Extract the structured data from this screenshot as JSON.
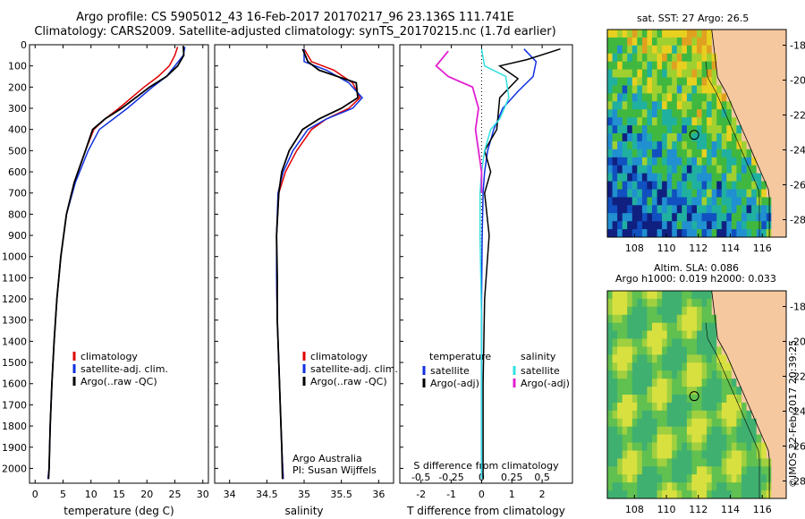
{
  "header": {
    "line1": "Argo profile: CS 5905012_43 16-Feb-2017 20170217_96 23.136S 111.741E",
    "line2": "Climatology: CARS2009. Satellite-adjusted climatology: synTS_20170215.nc (1.7d earlier)"
  },
  "colors": {
    "climatology": "#e00000",
    "satellite": "#1030e0",
    "argo": "#000000",
    "s_satellite": "#30e0e0",
    "s_argo": "#e020d0",
    "land": "#f5c8a0"
  },
  "chart_data": [
    {
      "type": "line",
      "xlabel": "temperature (deg C)",
      "xlim": [
        -1,
        31
      ],
      "xticks": [
        "0",
        "5",
        "10",
        "15",
        "20",
        "25",
        "30"
      ],
      "ylim": [
        0,
        2070
      ],
      "yticks": [
        "0",
        "100",
        "200",
        "300",
        "400",
        "500",
        "600",
        "700",
        "800",
        "900",
        "1000",
        "1100",
        "1200",
        "1300",
        "1400",
        "1500",
        "1600",
        "1700",
        "1800",
        "1900",
        "2000"
      ],
      "legend": [
        "climatology",
        "satellite-adj. clim.",
        "Argo(..raw -QC)"
      ],
      "series": [
        {
          "name": "climatology",
          "x": [
            25.5,
            25.0,
            24.0,
            22.0,
            19.5,
            15.0,
            12.5,
            10.5,
            9.0,
            7.0,
            5.6,
            4.6,
            3.9,
            3.4,
            3.0,
            2.7,
            2.5,
            2.3
          ],
          "y": [
            10,
            50,
            100,
            150,
            200,
            300,
            350,
            400,
            500,
            650,
            800,
            1000,
            1200,
            1400,
            1600,
            1800,
            2000,
            2050
          ]
        },
        {
          "name": "satellite-adj. clim.",
          "x": [
            26.8,
            26.5,
            25.0,
            23.5,
            21.0,
            16.5,
            14.0,
            11.5,
            9.5,
            7.2,
            5.6,
            4.6,
            3.9,
            3.4,
            3.0,
            2.7,
            2.5,
            2.3
          ],
          "y": [
            10,
            50,
            100,
            150,
            200,
            300,
            350,
            400,
            500,
            650,
            800,
            1000,
            1200,
            1400,
            1600,
            1800,
            2000,
            2050
          ]
        },
        {
          "name": "Argo(..raw -QC)",
          "x": [
            26.5,
            26.6,
            25.5,
            23.5,
            20.5,
            15.5,
            12.5,
            10.3,
            9.0,
            7.0,
            5.6,
            4.6,
            3.9,
            3.4,
            3.0,
            2.7,
            2.5,
            2.4
          ],
          "y": [
            5,
            50,
            100,
            150,
            200,
            300,
            350,
            400,
            500,
            650,
            800,
            1000,
            1200,
            1400,
            1600,
            1800,
            2000,
            2050
          ]
        }
      ]
    },
    {
      "type": "line",
      "xlabel": "salinity",
      "xlim": [
        33.8,
        36.2
      ],
      "xticks": [
        "34",
        "34.5",
        "35",
        "35.5",
        "36"
      ],
      "ylim": [
        0,
        2070
      ],
      "legend": [
        "climatology",
        "satellite-adj. clim.",
        "Argo(..raw -QC)"
      ],
      "annotation": [
        "Argo Australia",
        "PI: Susan Wijffels"
      ],
      "series": [
        {
          "name": "climatology",
          "x": [
            35.0,
            35.1,
            35.4,
            35.65,
            35.75,
            35.6,
            35.3,
            35.1,
            34.9,
            34.75,
            34.66,
            34.63,
            34.63,
            34.64,
            34.66,
            34.68,
            34.7,
            34.72
          ],
          "y": [
            20,
            80,
            120,
            180,
            250,
            300,
            350,
            400,
            500,
            600,
            700,
            900,
            1100,
            1300,
            1500,
            1700,
            1900,
            2050
          ]
        },
        {
          "name": "satellite-adj. clim.",
          "x": [
            35.0,
            35.0,
            35.3,
            35.6,
            35.78,
            35.65,
            35.3,
            35.05,
            34.85,
            34.72,
            34.65,
            34.63,
            34.63,
            34.64,
            34.66,
            34.68,
            34.7,
            34.72
          ],
          "y": [
            20,
            80,
            120,
            180,
            250,
            300,
            350,
            400,
            500,
            600,
            700,
            900,
            1100,
            1300,
            1500,
            1700,
            1900,
            2050
          ]
        },
        {
          "name": "Argo(..raw -QC)",
          "x": [
            34.98,
            35.05,
            35.2,
            35.7,
            35.72,
            35.5,
            35.2,
            34.98,
            34.8,
            34.7,
            34.66,
            34.63,
            34.64,
            34.64,
            34.66,
            34.68,
            34.7,
            34.71
          ],
          "y": [
            20,
            80,
            120,
            180,
            250,
            300,
            350,
            400,
            500,
            600,
            700,
            900,
            1100,
            1300,
            1500,
            1700,
            1900,
            2050
          ]
        }
      ]
    },
    {
      "type": "line",
      "xlabel": "T difference from climatology",
      "xlim": [
        -2.7,
        3.0
      ],
      "xticks": [
        "-2",
        "-1",
        "0",
        "1",
        "2"
      ],
      "top_axis_label": "S difference from climatology",
      "top_axis_ticks": [
        "-0.5",
        "-0.25",
        "0",
        "0.25",
        "0.5"
      ],
      "ylim": [
        0,
        2070
      ],
      "legend": [
        "temperature",
        "satellite",
        "Argo(-adj)",
        "salinity",
        "satellite",
        "Argo(-adj)"
      ],
      "series": [
        {
          "name": "satellite",
          "x": [
            1.4,
            1.8,
            1.7,
            1.2,
            0.7,
            0.4,
            0.2,
            0.1,
            0.05,
            0.02,
            0.0,
            0.0,
            0.0
          ],
          "y": [
            20,
            80,
            150,
            220,
            300,
            400,
            500,
            600,
            700,
            900,
            1200,
            1600,
            2050
          ]
        },
        {
          "name": "Argo(-adj)",
          "x": [
            2.6,
            1.5,
            0.6,
            1.2,
            0.6,
            0.5,
            0.1,
            0.3,
            0.1,
            0.25,
            0.1,
            0.05,
            0.05
          ],
          "y": [
            20,
            70,
            100,
            160,
            250,
            400,
            500,
            600,
            700,
            900,
            1200,
            1600,
            2050
          ]
        },
        {
          "name": "satellite",
          "x": [
            0.0,
            0.1,
            0.8,
            0.9,
            0.6,
            0.3,
            0.1,
            0.0,
            -0.05,
            -0.05,
            0.0,
            0.0
          ],
          "y": [
            20,
            100,
            150,
            250,
            350,
            400,
            500,
            600,
            700,
            900,
            1300,
            2050
          ]
        },
        {
          "name": "Argo(-adj)",
          "x": [
            -1.1,
            -1.5,
            -1.1,
            -0.3,
            -0.1,
            -0.2,
            -0.1,
            0.0,
            0.0
          ],
          "y": [
            30,
            100,
            150,
            200,
            300,
            400,
            500,
            600,
            700
          ]
        }
      ]
    }
  ],
  "maps": {
    "sst": {
      "title": "sat. SST: 27 Argo: 26.5",
      "xticks": [
        "108",
        "110",
        "112",
        "114",
        "116"
      ],
      "yticks": [
        "-18",
        "-20",
        "-22",
        "-24",
        "-26",
        "-28"
      ]
    },
    "sla": {
      "title_line1": "Altim. SLA: 0.086",
      "title_line2": "Argo h1000: 0.019 h2000: 0.033",
      "xticks": [
        "108",
        "110",
        "112",
        "114",
        "116"
      ],
      "yticks": [
        "-18",
        "-20",
        "-22",
        "-24",
        "-26",
        "-28"
      ]
    },
    "credit": "©IMOS 22-Feb-2017 20:39:25"
  }
}
